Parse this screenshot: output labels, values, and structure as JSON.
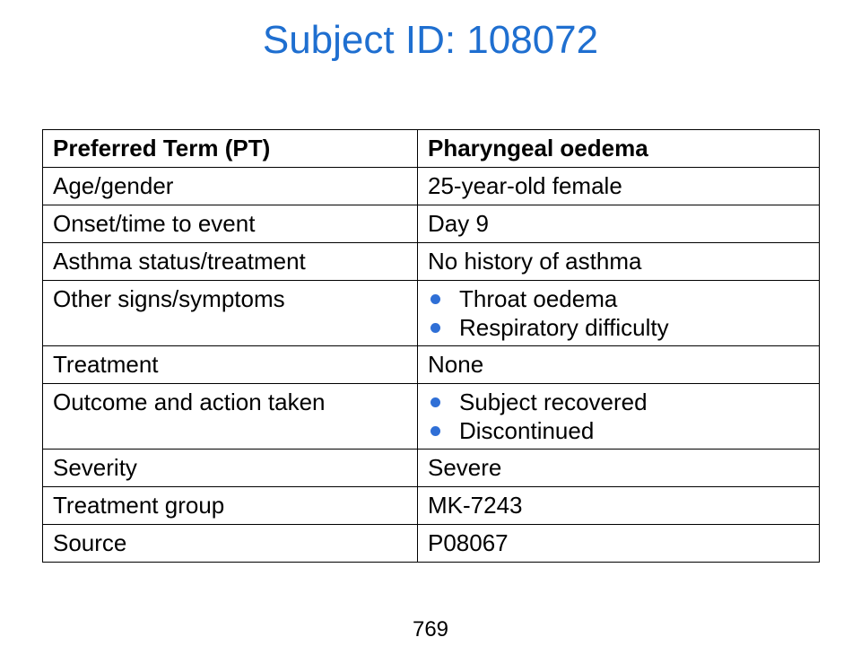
{
  "title": "Subject ID: 108072",
  "table": {
    "header": {
      "label": "Preferred Term (PT)",
      "value": "Pharyngeal oedema"
    },
    "rows": {
      "age_gender": {
        "label": "Age/gender",
        "value": "25-year-old female"
      },
      "onset": {
        "label": "Onset/time to event",
        "value": "Day 9"
      },
      "asthma": {
        "label": "Asthma status/treatment",
        "value": "No history of asthma"
      },
      "other_signs": {
        "label": "Other signs/symptoms",
        "items": [
          "Throat oedema",
          "Respiratory difficulty"
        ]
      },
      "treatment": {
        "label": "Treatment",
        "value": "None"
      },
      "outcome": {
        "label": "Outcome and action taken",
        "items": [
          "Subject recovered",
          "Discontinued"
        ]
      },
      "severity": {
        "label": "Severity",
        "value": "Severe"
      },
      "treatment_group": {
        "label": "Treatment group",
        "value": "MK-7243"
      },
      "source": {
        "label": "Source",
        "value": "P08067"
      }
    }
  },
  "page_number": "769",
  "colors": {
    "title": "#1f6fd0",
    "bullet": "#2f6fd6",
    "border": "#000000"
  }
}
